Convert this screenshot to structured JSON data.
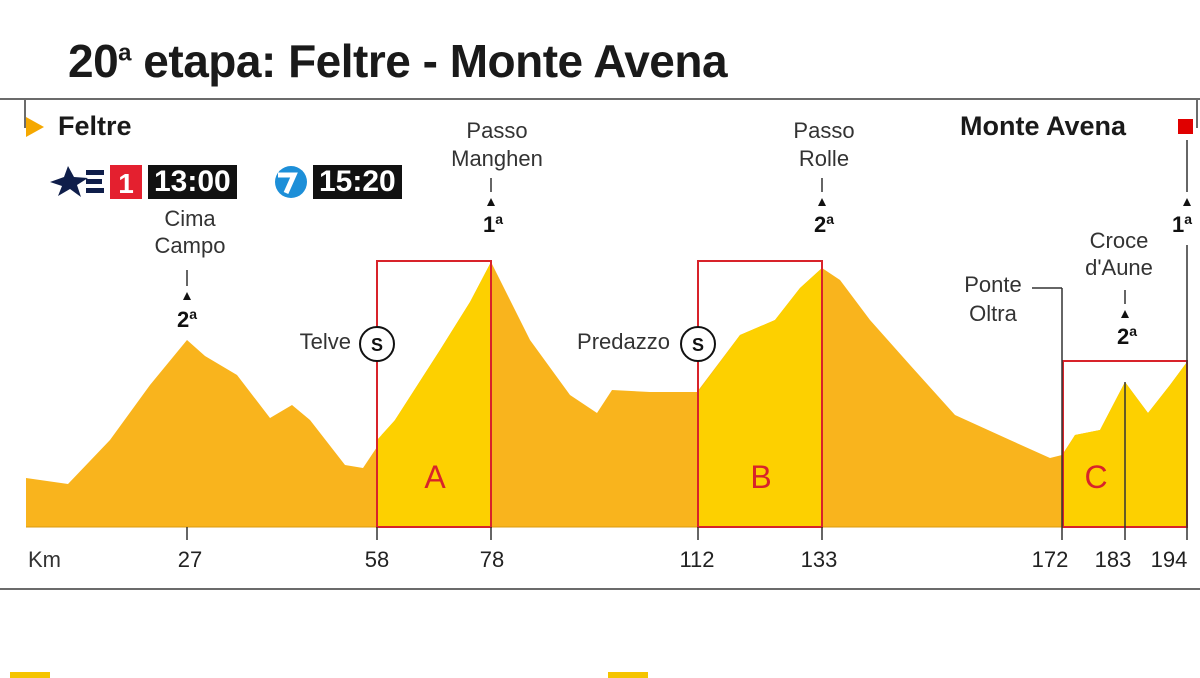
{
  "title": {
    "main": "20",
    "sup": "a",
    "rest": " etapa: Feltre - Monte Avena"
  },
  "start": {
    "name": "Feltre"
  },
  "finish": {
    "name": "Monte Avena"
  },
  "broadcast": [
    {
      "channel": "Eurosport 1",
      "icon": "eurosport-1-logo",
      "time": "13:00"
    },
    {
      "channel": "Gol",
      "icon": "gol-logo",
      "time": "15:20"
    }
  ],
  "km_label": "Km",
  "km_marks": [
    "27",
    "58",
    "78",
    "112",
    "133",
    "172",
    "183",
    "194"
  ],
  "climbs": [
    {
      "name_lines": [
        "Cima",
        "Campo"
      ],
      "category": "2",
      "cat_sup": "a"
    },
    {
      "name_lines": [
        "Passo",
        "Manghen"
      ],
      "category": "1",
      "cat_sup": "a"
    },
    {
      "name_lines": [
        "Passo",
        "Rolle"
      ],
      "category": "2",
      "cat_sup": "a"
    },
    {
      "name_lines": [
        "Croce",
        "d'Aune"
      ],
      "category": "2",
      "cat_sup": "a"
    },
    {
      "name_lines": [],
      "category": "1",
      "cat_sup": "a"
    }
  ],
  "sprints": [
    {
      "name": "Telve",
      "symbol": "S"
    },
    {
      "name": "Predazzo",
      "symbol": "S"
    }
  ],
  "points": [
    {
      "name_lines": [
        "Ponte",
        "Oltra"
      ]
    }
  ],
  "sections": [
    "A",
    "B",
    "C"
  ],
  "colors": {
    "profile": "#f9b41d",
    "highlight": "#fdd000",
    "section_border": "#d8232a",
    "section_label": "#d8232a",
    "start_flag": "#f5a800",
    "finish_flag": "#e00000"
  }
}
